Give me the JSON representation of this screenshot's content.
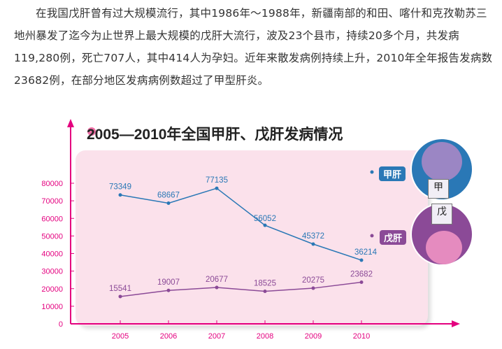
{
  "paragraph": "在我国戊肝曾有过大规模流行，其中1986年～1988年，新疆南部的和田、喀什和克孜勒苏三地州暴发了迄今为止世界上最大规模的戊肝大流行，波及23个县市，持续20多个月，共发病119,280例，死亡707人，其中414人为孕妇。近年来散发病例持续上升，2010年全年报告发病数23682例，在部分地区发病病例数超过了甲型肝炎。",
  "chart_data": {
    "type": "line",
    "title": "2005—2010年全国甲肝、戊肝发病情况",
    "categories": [
      "2005",
      "2006",
      "2007",
      "2008",
      "2009",
      "2010"
    ],
    "yticks": [
      "0",
      "10000",
      "20000",
      "30000",
      "40000",
      "50000",
      "60000",
      "70000",
      "80000"
    ],
    "ylim": [
      0,
      80000
    ],
    "series": [
      {
        "name": "甲肝",
        "color": "#2a78b6",
        "values": [
          73349,
          68667,
          77135,
          56052,
          45372,
          36214
        ]
      },
      {
        "name": "戊肝",
        "color": "#8b4a97",
        "values": [
          15541,
          19007,
          20677,
          18525,
          20275,
          23682
        ]
      }
    ],
    "legend": "right",
    "axis_color": "#e4007f",
    "badge_labels": [
      "甲",
      "戊"
    ]
  }
}
